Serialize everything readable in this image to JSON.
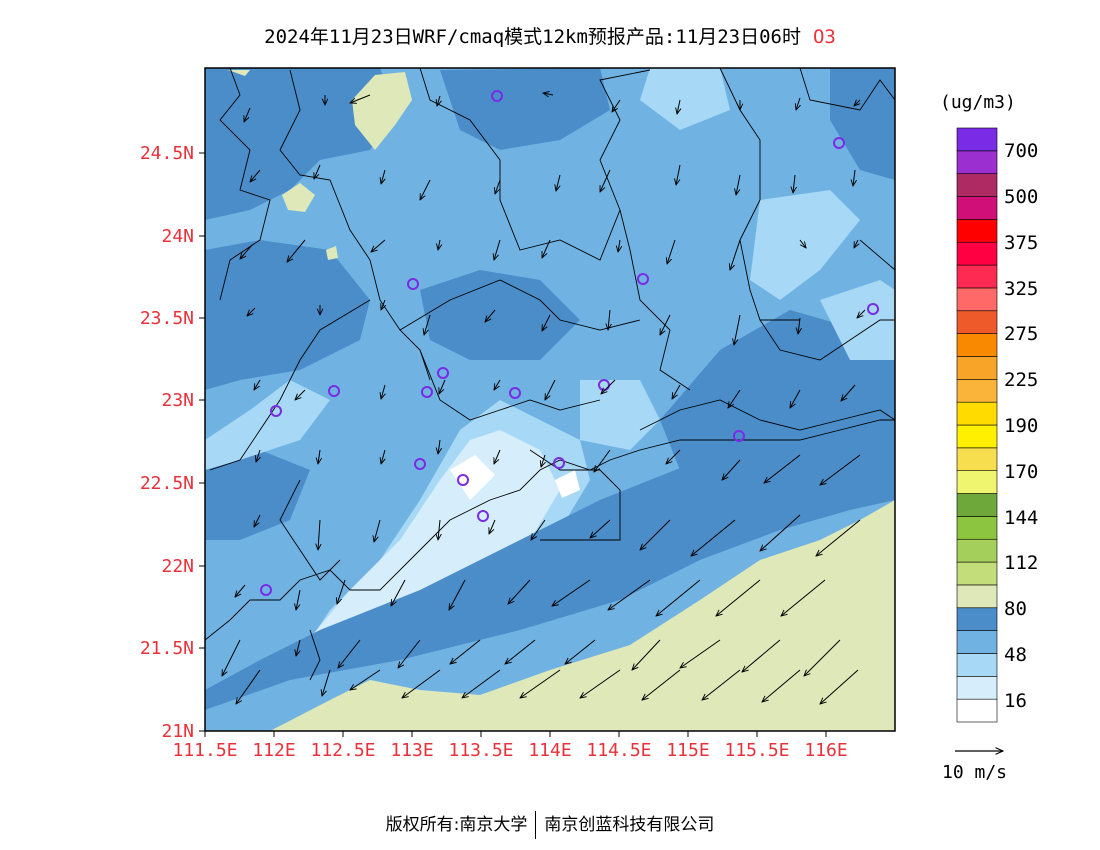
{
  "header": {
    "title": "2024年11月23日WRF/cmaq模式12km预报产品:11月23日06时",
    "pollutant": "O3"
  },
  "map": {
    "lat_labels": [
      "24.5N",
      "24N",
      "23.5N",
      "23N",
      "22.5N",
      "22N",
      "21.5N",
      "21N"
    ],
    "lon_labels": [
      "111.5E",
      "112E",
      "112.5E",
      "113E",
      "113.5E",
      "114E",
      "114.5E",
      "115E",
      "115.5E",
      "116E"
    ]
  },
  "colorbar": {
    "unit": "(ug/m3)",
    "colors": [
      "#ffffff",
      "#d6eefc",
      "#a7d8f5",
      "#70b3e3",
      "#4a8dc9",
      "#dfe8b8",
      "#c2dd7a",
      "#a3cf5a",
      "#8cc540",
      "#6fa83a",
      "#eff56e",
      "#f7de4e",
      "#fff000",
      "#ffdb00",
      "#fbb43a",
      "#f7a428",
      "#f98a00",
      "#ee5a2a",
      "#ff6a68",
      "#ff2a52",
      "#ff0043",
      "#ff0000",
      "#d00f78",
      "#ad2b62",
      "#9b2fd0",
      "#7a2be5"
    ],
    "labels": [
      "16",
      "48",
      "80",
      "112",
      "144",
      "170",
      "190",
      "225",
      "275",
      "325",
      "375",
      "500",
      "700"
    ]
  },
  "wind_legend": {
    "label": "10 m/s"
  },
  "footer": {
    "copyright_left": "版权所有:南京大学",
    "copyright_right": "南京创蓝科技有限公司"
  }
}
